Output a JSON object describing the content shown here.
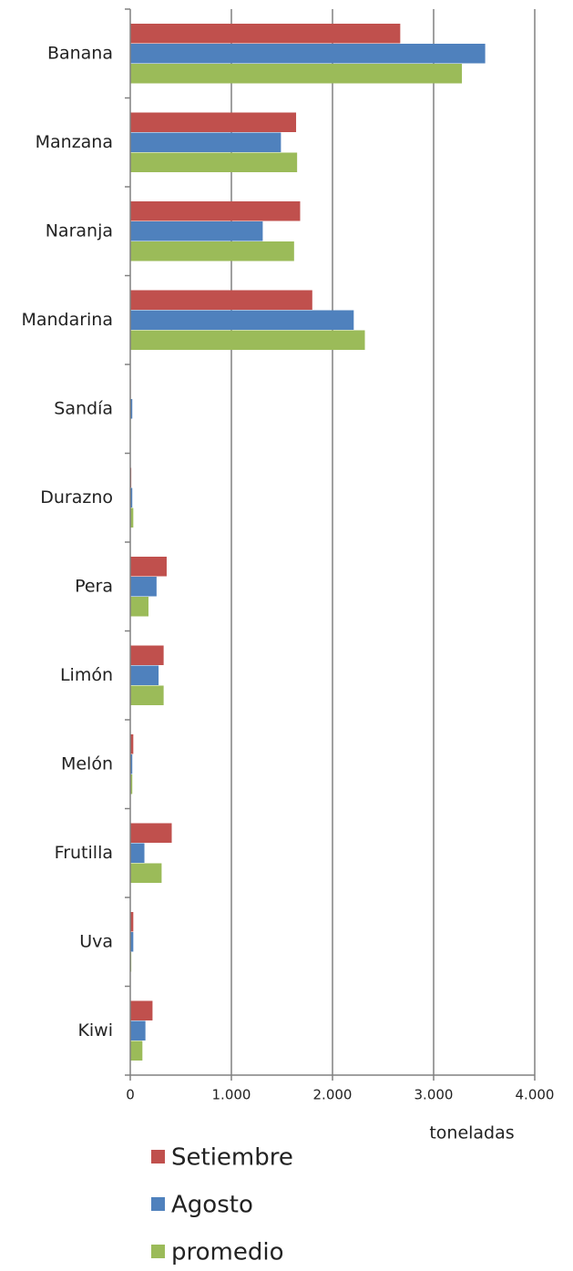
{
  "chart_data": {
    "type": "bar",
    "orientation": "horizontal",
    "categories": [
      "Banana",
      "Manzana",
      "Naranja",
      "Mandarina",
      "Sandía",
      "Durazno",
      "Pera",
      "Limón",
      "Melón",
      "Frutilla",
      "Uva",
      "Kiwi"
    ],
    "series": [
      {
        "name": "Setiembre",
        "color": "#c0504d",
        "values": [
          2670,
          1640,
          1680,
          1800,
          5,
          10,
          360,
          330,
          30,
          410,
          30,
          220
        ]
      },
      {
        "name": "Agosto",
        "color": "#4f81bd",
        "values": [
          3510,
          1490,
          1310,
          2210,
          20,
          20,
          260,
          280,
          20,
          140,
          30,
          150
        ]
      },
      {
        "name": "promedio",
        "color": "#9bbb59",
        "values": [
          3280,
          1650,
          1620,
          2320,
          5,
          30,
          180,
          330,
          20,
          310,
          10,
          120
        ]
      }
    ],
    "xlabel": "toneladas",
    "xlim": [
      0,
      4000
    ],
    "xticks": [
      0,
      {
        "value": 1000,
        "label": "1.000"
      },
      {
        "value": 2000,
        "label": "2.000"
      },
      {
        "value": 3000,
        "label": "3.000"
      },
      {
        "value": 4000,
        "label": "4.000"
      }
    ],
    "grid": true,
    "legend": "bottom"
  }
}
